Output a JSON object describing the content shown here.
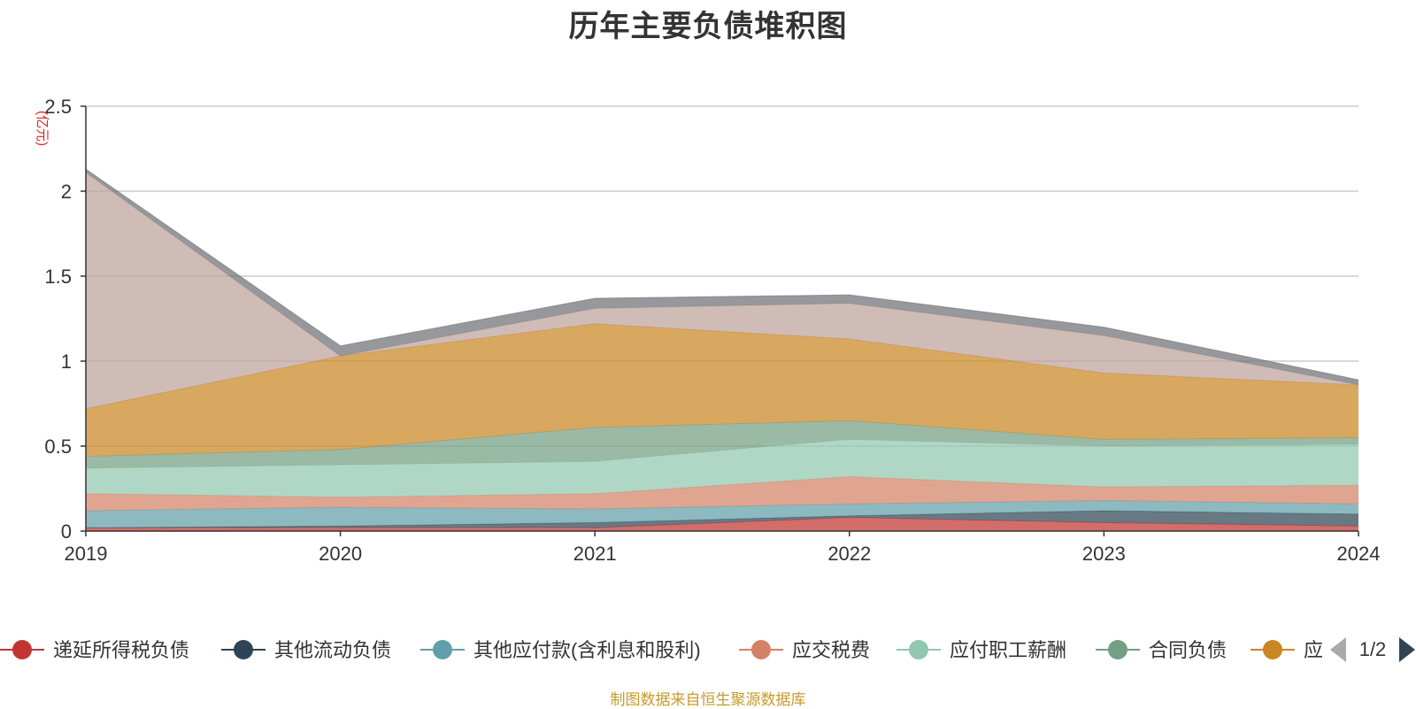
{
  "chart_data": {
    "type": "area",
    "stacked": true,
    "title": "历年主要负债堆积图",
    "y_unit": "(亿元)",
    "x": [
      "2019",
      "2020",
      "2021",
      "2022",
      "2023",
      "2024"
    ],
    "ylim": [
      0,
      2.5
    ],
    "yticks": [
      "0",
      "0.5",
      "1",
      "1.5",
      "2",
      "2.5"
    ],
    "grid": true,
    "series": [
      {
        "name": "递延所得税负债",
        "color": "#c23531",
        "values": [
          0.02,
          0.02,
          0.02,
          0.08,
          0.05,
          0.03
        ]
      },
      {
        "name": "其他流动负债",
        "color": "#2f4554",
        "values": [
          0.0,
          0.01,
          0.03,
          0.01,
          0.07,
          0.07
        ]
      },
      {
        "name": "其他应付款(含利息和股利)",
        "color": "#61a0a8",
        "values": [
          0.1,
          0.11,
          0.08,
          0.07,
          0.06,
          0.06
        ]
      },
      {
        "name": "应交税费",
        "color": "#d48265",
        "values": [
          0.1,
          0.06,
          0.09,
          0.16,
          0.08,
          0.11
        ]
      },
      {
        "name": "应付职工薪酬",
        "color": "#91c7ae",
        "values": [
          0.15,
          0.19,
          0.19,
          0.22,
          0.24,
          0.24
        ]
      },
      {
        "name": "合同负债",
        "color": "#749f83",
        "values": [
          0.07,
          0.09,
          0.2,
          0.11,
          0.04,
          0.04
        ]
      },
      {
        "name": "应付账款",
        "color": "#ca8622",
        "values": [
          0.28,
          0.55,
          0.61,
          0.48,
          0.39,
          0.31
        ]
      },
      {
        "name": "",
        "color": "#bda29a",
        "values": [
          1.39,
          0.0,
          0.09,
          0.21,
          0.22,
          0.0
        ]
      },
      {
        "name": "",
        "color": "#6e7074",
        "values": [
          0.02,
          0.06,
          0.06,
          0.05,
          0.05,
          0.03
        ]
      }
    ],
    "legend": {
      "position": "bottom",
      "visible_items": [
        "递延所得税负债",
        "其他流动负债",
        "其他应付款(含利息和股利)",
        "应交税费",
        "应付职工薪酬",
        "合同负债",
        "应"
      ],
      "page": "1/2"
    }
  },
  "source": "制图数据来自恒生聚源数据库"
}
